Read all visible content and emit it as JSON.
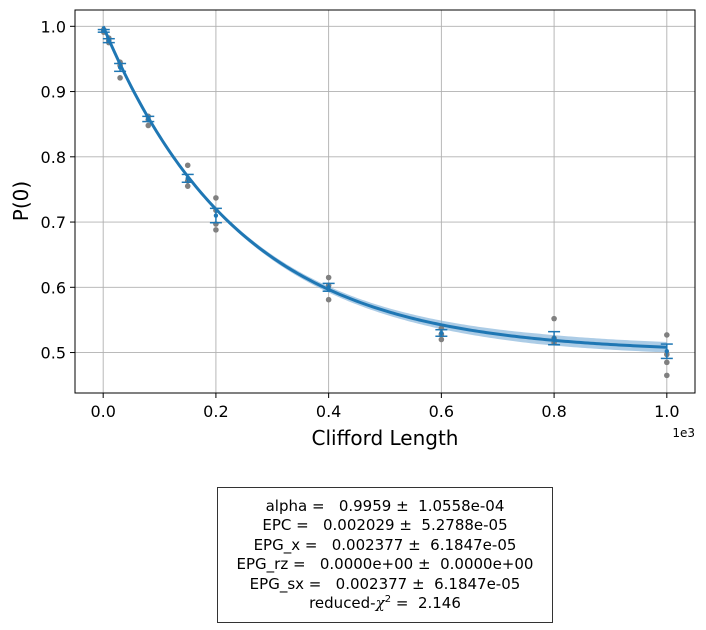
{
  "chart_data": {
    "type": "scatter",
    "title": "",
    "xlabel": "Clifford Length",
    "ylabel": "P(0)",
    "x_scale_note": "1e3",
    "xlim": [
      -0.05,
      1.05
    ],
    "ylim": [
      0.438,
      1.025
    ],
    "x_ticks": [
      0.0,
      0.2,
      0.4,
      0.6,
      0.8,
      1.0
    ],
    "x_tick_labels": [
      "0.0",
      "0.2",
      "0.4",
      "0.6",
      "0.8",
      "1.0"
    ],
    "y_ticks": [
      0.5,
      0.6,
      0.7,
      0.8,
      0.9,
      1.0
    ],
    "y_tick_labels": [
      "0.5",
      "0.6",
      "0.7",
      "0.8",
      "0.9",
      "1.0"
    ],
    "grid": true,
    "colors": {
      "fit": "#1f77b4",
      "band": "#7fb0d9",
      "points": "#808080",
      "errorbar": "#1f77b4"
    },
    "fit": {
      "model": "A*alpha^x + B",
      "A": 0.5,
      "B": 0.5,
      "alpha": 0.9959,
      "band_halfwidth": 0.008
    },
    "raw_points": [
      {
        "x": 0.001,
        "y": 0.995
      },
      {
        "x": 0.001,
        "y": 0.993
      },
      {
        "x": 0.001,
        "y": 0.991
      },
      {
        "x": 0.01,
        "y": 0.982
      },
      {
        "x": 0.01,
        "y": 0.978
      },
      {
        "x": 0.01,
        "y": 0.975
      },
      {
        "x": 0.03,
        "y": 0.945
      },
      {
        "x": 0.03,
        "y": 0.94
      },
      {
        "x": 0.03,
        "y": 0.921
      },
      {
        "x": 0.08,
        "y": 0.862
      },
      {
        "x": 0.08,
        "y": 0.857
      },
      {
        "x": 0.08,
        "y": 0.848
      },
      {
        "x": 0.15,
        "y": 0.787
      },
      {
        "x": 0.15,
        "y": 0.763
      },
      {
        "x": 0.15,
        "y": 0.755
      },
      {
        "x": 0.2,
        "y": 0.737
      },
      {
        "x": 0.2,
        "y": 0.718
      },
      {
        "x": 0.2,
        "y": 0.697
      },
      {
        "x": 0.2,
        "y": 0.688
      },
      {
        "x": 0.4,
        "y": 0.615
      },
      {
        "x": 0.4,
        "y": 0.603
      },
      {
        "x": 0.4,
        "y": 0.581
      },
      {
        "x": 0.6,
        "y": 0.537
      },
      {
        "x": 0.6,
        "y": 0.528
      },
      {
        "x": 0.6,
        "y": 0.52
      },
      {
        "x": 0.8,
        "y": 0.552
      },
      {
        "x": 0.8,
        "y": 0.522
      },
      {
        "x": 0.8,
        "y": 0.515
      },
      {
        "x": 1.0,
        "y": 0.527
      },
      {
        "x": 1.0,
        "y": 0.497
      },
      {
        "x": 1.0,
        "y": 0.485
      },
      {
        "x": 1.0,
        "y": 0.465
      }
    ],
    "mean_points": [
      {
        "x": 0.001,
        "y": 0.993,
        "err": 0.002
      },
      {
        "x": 0.01,
        "y": 0.978,
        "err": 0.003
      },
      {
        "x": 0.03,
        "y": 0.937,
        "err": 0.006
      },
      {
        "x": 0.08,
        "y": 0.858,
        "err": 0.004
      },
      {
        "x": 0.15,
        "y": 0.767,
        "err": 0.006
      },
      {
        "x": 0.2,
        "y": 0.71,
        "err": 0.011
      },
      {
        "x": 0.4,
        "y": 0.6,
        "err": 0.006
      },
      {
        "x": 0.6,
        "y": 0.53,
        "err": 0.005
      },
      {
        "x": 0.8,
        "y": 0.522,
        "err": 0.01
      },
      {
        "x": 1.0,
        "y": 0.502,
        "err": 0.011
      }
    ]
  },
  "stats": {
    "alpha": "alpha =   0.9959 ±  1.0558e-04",
    "epc": "EPC =   0.002029 ±  5.2788e-05",
    "epg_x": "EPG_x =   0.002377 ±  6.1847e-05",
    "epg_rz": "EPG_rz =   0.0000e+00 ±  0.0000e+00",
    "epg_sx": "EPG_sx =   0.002377 ±  6.1847e-05",
    "chi_prefix": "reduced-",
    "chi_symbol": "χ",
    "chi_exp": "2",
    "chi_value": " =  2.146"
  }
}
